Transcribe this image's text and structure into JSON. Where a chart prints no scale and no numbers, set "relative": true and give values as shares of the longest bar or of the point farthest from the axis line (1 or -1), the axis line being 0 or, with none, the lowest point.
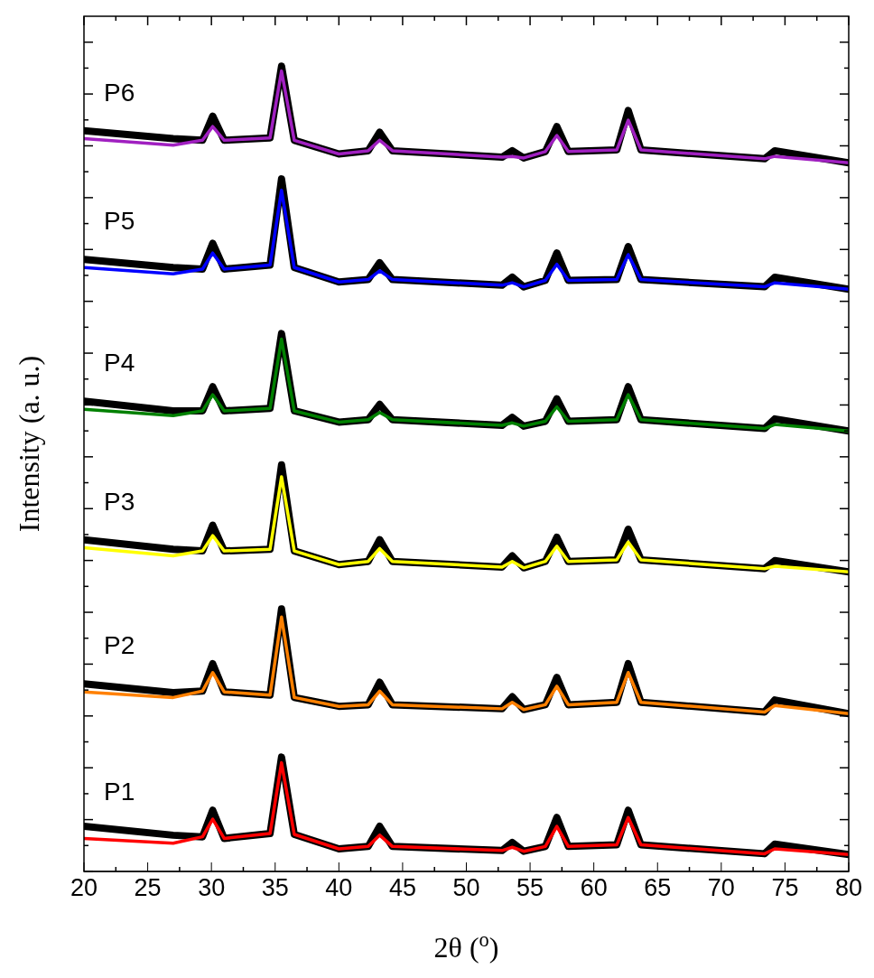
{
  "chart_data": {
    "type": "line",
    "relative": true,
    "xlabel": "2θ ($^{o}$)",
    "ylabel": "Intensity (a. u.)",
    "xlim": [
      20,
      80
    ],
    "xticks": [
      20,
      25,
      30,
      35,
      40,
      45,
      50,
      55,
      60,
      65,
      70,
      75,
      80
    ],
    "marker": "none",
    "line_style": "solid",
    "x": [
      20,
      27,
      29.3,
      30.1,
      31,
      34.6,
      35.5,
      36.5,
      40,
      42.3,
      43.2,
      44.2,
      52.8,
      53.6,
      54.5,
      56.2,
      57.1,
      58,
      61.8,
      62.7,
      63.7,
      73.4,
      74.2,
      80
    ],
    "series": [
      {
        "color": "#000000",
        "values": [
          0.056,
          0.045,
          0.043,
          0.076,
          0.041,
          0.047,
          0.142,
          0.046,
          0.028,
          0.031,
          0.056,
          0.031,
          0.026,
          0.036,
          0.025,
          0.031,
          0.067,
          0.031,
          0.033,
          0.076,
          0.033,
          0.022,
          0.034,
          0.021
        ]
      },
      {
        "name": "P1",
        "color": "#ff0000",
        "values": [
          0.041,
          0.035,
          0.043,
          0.065,
          0.041,
          0.047,
          0.135,
          0.046,
          0.028,
          0.031,
          0.045,
          0.031,
          0.026,
          0.03,
          0.025,
          0.031,
          0.056,
          0.031,
          0.033,
          0.067,
          0.033,
          0.022,
          0.028,
          0.021
        ]
      },
      {
        "color": "#000000",
        "values": [
          0.233,
          0.222,
          0.224,
          0.258,
          0.223,
          0.219,
          0.326,
          0.216,
          0.205,
          0.207,
          0.235,
          0.207,
          0.202,
          0.217,
          0.201,
          0.207,
          0.241,
          0.207,
          0.21,
          0.258,
          0.21,
          0.198,
          0.213,
          0.196
        ]
      },
      {
        "name": "P2",
        "color": "#ff8000",
        "values": [
          0.223,
          0.216,
          0.224,
          0.247,
          0.223,
          0.219,
          0.316,
          0.216,
          0.205,
          0.207,
          0.224,
          0.207,
          0.202,
          0.21,
          0.201,
          0.207,
          0.23,
          0.207,
          0.21,
          0.247,
          0.21,
          0.198,
          0.206,
          0.196
        ]
      },
      {
        "color": "#000000",
        "values": [
          0.412,
          0.4,
          0.398,
          0.43,
          0.398,
          0.4,
          0.505,
          0.398,
          0.381,
          0.385,
          0.412,
          0.385,
          0.378,
          0.392,
          0.377,
          0.385,
          0.415,
          0.385,
          0.387,
          0.425,
          0.387,
          0.376,
          0.386,
          0.372
        ]
      },
      {
        "name": "P3",
        "color": "#ffff00",
        "values": [
          0.402,
          0.392,
          0.398,
          0.417,
          0.398,
          0.4,
          0.49,
          0.398,
          0.381,
          0.385,
          0.401,
          0.385,
          0.378,
          0.385,
          0.377,
          0.385,
          0.404,
          0.385,
          0.387,
          0.409,
          0.387,
          0.376,
          0.379,
          0.372
        ]
      },
      {
        "color": "#000000",
        "values": [
          0.584,
          0.572,
          0.572,
          0.602,
          0.572,
          0.575,
          0.668,
          0.572,
          0.558,
          0.561,
          0.58,
          0.561,
          0.554,
          0.564,
          0.553,
          0.559,
          0.587,
          0.559,
          0.561,
          0.602,
          0.561,
          0.55,
          0.562,
          0.547
        ]
      },
      {
        "name": "P4",
        "color": "#008000",
        "values": [
          0.574,
          0.566,
          0.572,
          0.592,
          0.572,
          0.575,
          0.661,
          0.572,
          0.558,
          0.561,
          0.57,
          0.561,
          0.554,
          0.557,
          0.553,
          0.559,
          0.577,
          0.559,
          0.561,
          0.592,
          0.561,
          0.55,
          0.555,
          0.547
        ]
      },
      {
        "color": "#000000",
        "values": [
          0.76,
          0.75,
          0.748,
          0.78,
          0.748,
          0.753,
          0.86,
          0.75,
          0.732,
          0.735,
          0.756,
          0.735,
          0.728,
          0.738,
          0.726,
          0.734,
          0.768,
          0.734,
          0.735,
          0.776,
          0.735,
          0.726,
          0.738,
          0.723
        ]
      },
      {
        "name": "P5",
        "color": "#0000ff",
        "values": [
          0.75,
          0.742,
          0.748,
          0.768,
          0.748,
          0.753,
          0.846,
          0.75,
          0.732,
          0.735,
          0.746,
          0.735,
          0.728,
          0.731,
          0.726,
          0.734,
          0.754,
          0.734,
          0.735,
          0.766,
          0.735,
          0.726,
          0.731,
          0.723
        ]
      },
      {
        "color": "#000000",
        "values": [
          0.92,
          0.91,
          0.908,
          0.938,
          0.908,
          0.911,
          1.0,
          0.908,
          0.891,
          0.895,
          0.918,
          0.895,
          0.887,
          0.895,
          0.886,
          0.894,
          0.925,
          0.894,
          0.896,
          0.945,
          0.896,
          0.885,
          0.895,
          0.88
        ]
      },
      {
        "name": "P6",
        "color": "#a020c0",
        "values": [
          0.91,
          0.902,
          0.908,
          0.925,
          0.908,
          0.911,
          0.994,
          0.908,
          0.891,
          0.895,
          0.908,
          0.895,
          0.887,
          0.888,
          0.886,
          0.894,
          0.914,
          0.894,
          0.896,
          0.933,
          0.896,
          0.885,
          0.888,
          0.88
        ]
      }
    ]
  }
}
